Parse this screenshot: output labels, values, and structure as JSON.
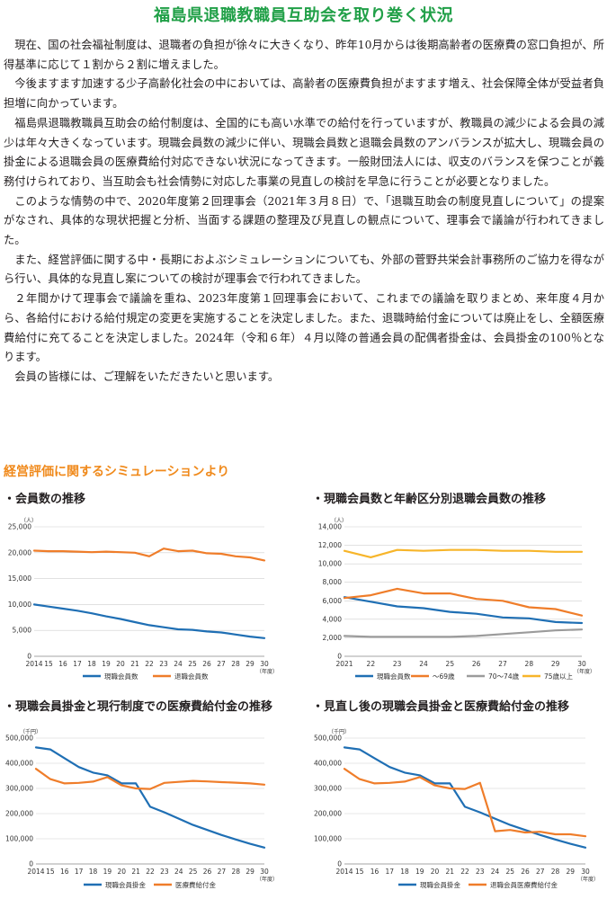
{
  "title": "福島県退職教職員互助会を取り巻く状況",
  "paragraphs": [
    "現在、国の社会福祉制度は、退職者の負担が徐々に大きくなり、昨年10月からは後期高齢者の医療費の窓口負担が、所得基準に応じて１割から２割に増えました。",
    "今後ますます加速する少子高齢化社会の中においては、高齢者の医療費負担がますます増え、社会保障全体が受益者負担増に向かっています。",
    "福島県退職教職員互助会の給付制度は、全国的にも高い水準での給付を行っていますが、教職員の減少による会員の減少は年々大きくなっています。現職会員数の減少に伴い、現職会員数と退職会員数のアンバランスが拡大し、現職会員の掛金による退職会員の医療費給付対応できない状況になってきます。一般財団法人には、収支のバランスを保つことが義務付けられており、当互助会も社会情勢に対応した事業の見直しの検討を早急に行うことが必要となりました。",
    "このような情勢の中で、2020年度第２回理事会（2021年３月８日）で、「退職互助会の制度見直しについて」の提案がなされ、具体的な現状把握と分析、当面する課題の整理及び見直しの観点について、理事会で議論が行われてきました。",
    "また、経営評価に関する中・長期におよぶシミュレーションについても、外部の菅野共栄会計事務所のご協力を得ながら行い、具体的な見直し案についての検討が理事会で行われてきました。",
    "２年間かけて理事会で議論を重ね、2023年度第１回理事会において、これまでの議論を取りまとめ、来年度４月から、各給付における給付規定の変更を実施することを決定しました。また、退職時給付金については廃止をし、全額医療費給付に充てることを決定しました。2024年（令和６年）４月以降の普通会員の配偶者掛金は、会員掛金の100％となります。",
    "会員の皆様には、ご理解をいただきたいと思います。"
  ],
  "section_heading": "経営評価に関するシミュレーションより",
  "colors": {
    "title": "#21a048",
    "heading": "#f08a1c",
    "blue": "#1f6fb4",
    "orange": "#ef7d2a",
    "gray": "#9b9b9b",
    "yellow": "#f7b52a"
  },
  "chart_data": [
    {
      "type": "line",
      "title": "・会員数の推移",
      "unit": "（人）",
      "x_unit": "（年度）",
      "x": [
        "2014",
        "15",
        "16",
        "17",
        "18",
        "19",
        "20",
        "21",
        "22",
        "23",
        "24",
        "25",
        "26",
        "27",
        "28",
        "29",
        "30"
      ],
      "ylim": [
        0,
        25000
      ],
      "yticks": [
        0,
        5000,
        10000,
        15000,
        20000,
        25000
      ],
      "ytick_labels": [
        "0",
        "5,000",
        "10,000",
        "15,000",
        "20,000",
        "25,000"
      ],
      "series": [
        {
          "name": "現職会員数",
          "color": "#1f6fb4",
          "values": [
            10000,
            9600,
            9200,
            8800,
            8300,
            7700,
            7200,
            6600,
            6000,
            5600,
            5200,
            5100,
            4800,
            4600,
            4200,
            3800,
            3500
          ]
        },
        {
          "name": "退職会員数",
          "color": "#ef7d2a",
          "values": [
            20400,
            20300,
            20300,
            20200,
            20100,
            20200,
            20100,
            20000,
            19300,
            20800,
            20300,
            20400,
            19900,
            19800,
            19300,
            19100,
            18500
          ]
        }
      ]
    },
    {
      "type": "line",
      "title": "・現職会員数と年齢区分別退職会員数の推移",
      "unit": "（人）",
      "x_unit": "（年度）",
      "x": [
        "2021",
        "22",
        "23",
        "24",
        "25",
        "26",
        "27",
        "28",
        "29",
        "30"
      ],
      "ylim": [
        0,
        14000
      ],
      "yticks": [
        0,
        2000,
        4000,
        6000,
        8000,
        10000,
        12000,
        14000
      ],
      "ytick_labels": [
        "0",
        "2,000",
        "4,000",
        "6,000",
        "8,000",
        "10,000",
        "12,000",
        "14,000"
      ],
      "series": [
        {
          "name": "現職会員数",
          "color": "#1f6fb4",
          "values": [
            6400,
            5900,
            5400,
            5200,
            4800,
            4600,
            4200,
            4100,
            3700,
            3600
          ]
        },
        {
          "name": "〜69歳",
          "color": "#ef7d2a",
          "values": [
            6300,
            6600,
            7300,
            6800,
            6800,
            6200,
            6000,
            5300,
            5100,
            4400
          ]
        },
        {
          "name": "70〜74歳",
          "color": "#9b9b9b",
          "values": [
            2200,
            2100,
            2100,
            2100,
            2100,
            2200,
            2400,
            2600,
            2800,
            2900
          ]
        },
        {
          "name": "75歳以上",
          "color": "#f7b52a",
          "values": [
            11400,
            10700,
            11500,
            11400,
            11500,
            11500,
            11400,
            11400,
            11300,
            11300
          ]
        }
      ]
    },
    {
      "type": "line",
      "title": "・現職会員掛金と現行制度での医療費給付金の推移",
      "unit": "（千円）",
      "x_unit": "（年度）",
      "x": [
        "2014",
        "15",
        "16",
        "17",
        "18",
        "19",
        "20",
        "21",
        "22",
        "23",
        "24",
        "25",
        "26",
        "27",
        "28",
        "29",
        "30"
      ],
      "ylim": [
        0,
        500000
      ],
      "yticks": [
        0,
        100000,
        200000,
        300000,
        400000,
        500000
      ],
      "ytick_labels": [
        "0",
        "100,000",
        "200,000",
        "300,000",
        "400,000",
        "500,000"
      ],
      "series": [
        {
          "name": "現職会員掛金",
          "color": "#1f6fb4",
          "values": [
            463000,
            455000,
            420000,
            385000,
            363000,
            352000,
            320000,
            320000,
            227000,
            205000,
            180000,
            155000,
            135000,
            115000,
            97000,
            80000,
            65000
          ]
        },
        {
          "name": "医療費給付金",
          "color": "#ef7d2a",
          "values": [
            378000,
            337000,
            320000,
            322000,
            327000,
            345000,
            312000,
            300000,
            298000,
            322000,
            326000,
            330000,
            328000,
            325000,
            323000,
            320000,
            315000
          ]
        }
      ]
    },
    {
      "type": "line",
      "title": "・見直し後の現職会員掛金と医療費給付金の推移",
      "unit": "（千円）",
      "x_unit": "（年度）",
      "x": [
        "2014",
        "15",
        "16",
        "17",
        "18",
        "19",
        "20",
        "21",
        "22",
        "23",
        "24",
        "25",
        "26",
        "27",
        "28",
        "29",
        "30"
      ],
      "ylim": [
        0,
        500000
      ],
      "yticks": [
        0,
        100000,
        200000,
        300000,
        400000,
        500000
      ],
      "ytick_labels": [
        "0",
        "100,000",
        "200,000",
        "300,000",
        "400,000",
        "500,000"
      ],
      "series": [
        {
          "name": "現職会員掛金",
          "color": "#1f6fb4",
          "values": [
            463000,
            455000,
            420000,
            385000,
            363000,
            352000,
            320000,
            320000,
            227000,
            205000,
            180000,
            155000,
            135000,
            115000,
            97000,
            80000,
            65000
          ]
        },
        {
          "name": "退職会員医療費給付金",
          "color": "#ef7d2a",
          "values": [
            378000,
            337000,
            320000,
            322000,
            327000,
            345000,
            312000,
            300000,
            298000,
            322000,
            130000,
            135000,
            125000,
            128000,
            118000,
            118000,
            110000
          ]
        }
      ]
    }
  ]
}
